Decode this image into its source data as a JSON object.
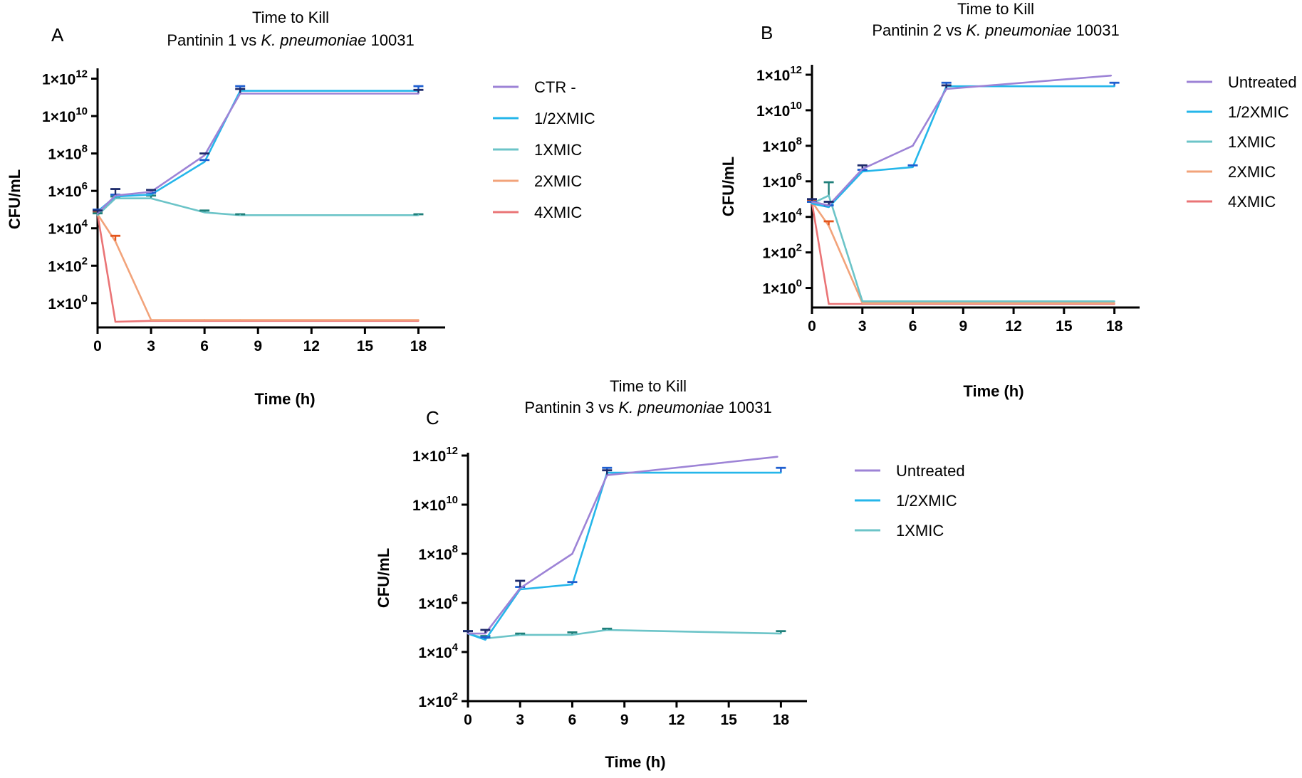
{
  "colors": {
    "ctr": "#9d83d6",
    "half_mic": "#25b6ea",
    "one_mic": "#6cc4c8",
    "two_mic": "#f2a37a",
    "four_mic": "#ea7476",
    "err_dark": "#1d2a6b",
    "err_blue": "#1f5fd0",
    "err_teal": "#1f7f7a",
    "err_orange": "#e4551b",
    "err_red": "#c8322c"
  },
  "chart_data": [
    {
      "panel": "A",
      "type": "line",
      "title_line1": "Time to Kill",
      "title_line2_prefix": "Pantinin 1 vs ",
      "title_line2_italic": "K. pneumoniae",
      "title_line2_suffix": " 10031",
      "xlabel": "Time (h)",
      "ylabel": "CFU/mL",
      "yscale": "log10",
      "ylim_exp": [
        -1.3,
        12.4
      ],
      "xlim": [
        0,
        19.5
      ],
      "xticks": [
        0,
        3,
        6,
        9,
        12,
        15,
        18
      ],
      "yticks_exp": [
        0,
        2,
        4,
        6,
        8,
        10,
        12
      ],
      "series": [
        {
          "name": "CTR -",
          "color_key": "ctr",
          "x": [
            0,
            1,
            3,
            6,
            8,
            18
          ],
          "log10_cfu": [
            4.8,
            5.75,
            5.95,
            7.9,
            11.2,
            11.2
          ],
          "err_log10": [
            0.15,
            0.35,
            0.1,
            0.1,
            0.25,
            0.2
          ],
          "err_color_key": "err_dark"
        },
        {
          "name": "1/2XMIC",
          "color_key": "half_mic",
          "x": [
            0,
            1,
            3,
            6,
            8,
            18
          ],
          "log10_cfu": [
            4.9,
            5.7,
            5.8,
            7.55,
            11.35,
            11.35
          ],
          "err_log10": [
            0.1,
            0.1,
            0.1,
            0.1,
            0.25,
            0.25
          ],
          "err_color_key": "err_blue"
        },
        {
          "name": "1XMIC",
          "color_key": "one_mic",
          "x": [
            0,
            1,
            3,
            6,
            8,
            18
          ],
          "log10_cfu": [
            4.7,
            5.6,
            5.6,
            4.85,
            4.7,
            4.7
          ],
          "err_log10": [
            0.1,
            0.1,
            0.15,
            0.1,
            0.05,
            0.05
          ],
          "err_color_key": "err_teal"
        },
        {
          "name": "2XMIC",
          "color_key": "two_mic",
          "x": [
            0,
            1,
            3,
            6,
            8,
            18
          ],
          "log10_cfu": [
            4.75,
            3.3,
            -0.9,
            -0.9,
            -0.9,
            -0.9
          ],
          "err_log10": [
            0.1,
            0.3,
            0,
            0,
            0,
            0
          ],
          "err_color_key": "err_orange"
        },
        {
          "name": "4XMIC",
          "color_key": "four_mic",
          "x": [
            0,
            1,
            3,
            6,
            8,
            18
          ],
          "log10_cfu": [
            4.75,
            -1.0,
            -0.95,
            -0.95,
            -0.95,
            -0.95
          ],
          "err_log10": [
            0.1,
            0,
            0,
            0,
            0,
            0
          ],
          "err_color_key": "err_red"
        }
      ]
    },
    {
      "panel": "B",
      "type": "line",
      "title_line1": "Time to Kill",
      "title_line2_prefix": "Pantinin 2 vs ",
      "title_line2_italic": "K. pneumoniae",
      "title_line2_suffix": " 10031",
      "xlabel": "Time (h)",
      "ylabel": "CFU/mL",
      "yscale": "log10",
      "ylim_exp": [
        -1.1,
        12.4
      ],
      "xlim": [
        0,
        19.5
      ],
      "xticks": [
        0,
        3,
        6,
        9,
        12,
        15,
        18
      ],
      "yticks_exp": [
        0,
        2,
        4,
        6,
        8,
        10,
        12
      ],
      "series": [
        {
          "name": "Untreated",
          "color_key": "ctr",
          "x": [
            0,
            1,
            3,
            6,
            8,
            17.8
          ],
          "log10_cfu": [
            4.85,
            4.65,
            6.7,
            8.0,
            11.2,
            11.95
          ],
          "err_log10": [
            0.15,
            0.2,
            0.2,
            0,
            0.2,
            0
          ],
          "err_color_key": "err_dark"
        },
        {
          "name": "1/2XMIC",
          "color_key": "half_mic",
          "x": [
            0,
            1,
            3,
            6,
            8,
            18
          ],
          "log10_cfu": [
            4.75,
            4.55,
            6.55,
            6.8,
            11.35,
            11.35
          ],
          "err_log10": [
            0.1,
            0.1,
            0.1,
            0.1,
            0.2,
            0.2
          ],
          "err_color_key": "err_blue"
        },
        {
          "name": "1XMIC",
          "color_key": "one_mic",
          "x": [
            0,
            1,
            3,
            6,
            8,
            18
          ],
          "log10_cfu": [
            4.75,
            5.2,
            -0.75,
            -0.75,
            -0.75,
            -0.75
          ],
          "err_log10": [
            0.1,
            0.75,
            0,
            0,
            0,
            0
          ],
          "err_color_key": "err_teal"
        },
        {
          "name": "2XMIC",
          "color_key": "two_mic",
          "x": [
            0,
            1,
            3,
            6,
            8,
            18
          ],
          "log10_cfu": [
            4.85,
            3.5,
            -0.85,
            -0.85,
            -0.85,
            -0.85
          ],
          "err_log10": [
            0.1,
            0.25,
            0,
            0,
            0,
            0
          ],
          "err_color_key": "err_orange"
        },
        {
          "name": "4XMIC",
          "color_key": "four_mic",
          "x": [
            0,
            1,
            3,
            6,
            8,
            18
          ],
          "log10_cfu": [
            4.8,
            -0.9,
            -0.9,
            -0.9,
            -0.9,
            -0.9
          ],
          "err_log10": [
            0.1,
            0,
            0,
            0,
            0,
            0
          ],
          "err_color_key": "err_red"
        }
      ]
    },
    {
      "panel": "C",
      "type": "line",
      "title_line1": "Time to Kill",
      "title_line2_prefix": "Pantinin 3 vs ",
      "title_line2_italic": "K. pneumoniae",
      "title_line2_suffix": " 10031",
      "xlabel": "Time (h)",
      "ylabel": "CFU/mL",
      "yscale": "log10",
      "ylim_exp": [
        2,
        12
      ],
      "xlim": [
        0,
        19.5
      ],
      "xticks": [
        0,
        3,
        6,
        9,
        12,
        15,
        18
      ],
      "yticks_exp": [
        2,
        4,
        6,
        8,
        10,
        12
      ],
      "series": [
        {
          "name": "Untreated",
          "color_key": "ctr",
          "x": [
            0,
            1,
            3,
            6,
            8,
            17.8
          ],
          "log10_cfu": [
            4.75,
            4.75,
            6.6,
            8.0,
            11.2,
            11.95
          ],
          "err_log10": [
            0.1,
            0.15,
            0.3,
            0,
            0.2,
            0
          ],
          "err_color_key": "err_dark"
        },
        {
          "name": "1/2XMIC",
          "color_key": "half_mic",
          "x": [
            0,
            1,
            3,
            6,
            8,
            18
          ],
          "log10_cfu": [
            4.75,
            4.5,
            6.55,
            6.75,
            11.3,
            11.3
          ],
          "err_log10": [
            0.1,
            0.1,
            0.1,
            0.1,
            0.2,
            0.2
          ],
          "err_color_key": "err_blue"
        },
        {
          "name": "1XMIC",
          "color_key": "one_mic",
          "x": [
            0,
            1,
            3,
            6,
            8,
            18
          ],
          "log10_cfu": [
            4.75,
            4.55,
            4.7,
            4.7,
            4.9,
            4.75
          ],
          "err_log10": [
            0.1,
            0.1,
            0.05,
            0.1,
            0.05,
            0.1
          ],
          "err_color_key": "err_teal"
        }
      ]
    }
  ]
}
